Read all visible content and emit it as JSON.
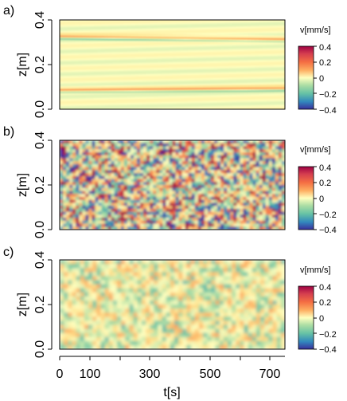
{
  "figure": {
    "x_ticks": [
      "0",
      "100",
      "300",
      "500",
      "700"
    ],
    "x_label": "t[s]"
  },
  "chart_data": [
    {
      "type": "heatmap",
      "panel_label": "a)",
      "xlim": [
        0,
        750
      ],
      "ylim": [
        0,
        0.4
      ],
      "y_ticks": [
        "0.0",
        "0.2",
        "0.4"
      ],
      "ylabel": "z[m]",
      "colorbar": {
        "title": "v[mm/s]",
        "ticks": [
          "0.4",
          "0.2",
          "0",
          "−0.2",
          "−0.4"
        ],
        "range": [
          -0.4,
          0.4
        ]
      },
      "pattern": "two thin layered bands near z≈0.08 and z≈0.31, slowly shifting with t"
    },
    {
      "type": "heatmap",
      "panel_label": "b)",
      "xlim": [
        0,
        750
      ],
      "ylim": [
        0,
        0.4
      ],
      "y_ticks": [
        "0.0",
        "0.2",
        "0.4"
      ],
      "ylabel": "z[m]",
      "colorbar": {
        "title": "v[mm/s]",
        "ticks": [
          "0.4",
          "0.2",
          "0",
          "−0.2",
          "−0.4"
        ],
        "range": [
          -0.4,
          0.4
        ]
      },
      "pattern": "strong random patches filling whole depth"
    },
    {
      "type": "heatmap",
      "panel_label": "c)",
      "xlim": [
        0,
        750
      ],
      "ylim": [
        0,
        0.4
      ],
      "y_ticks": [
        "0.0",
        "0.2",
        "0.4"
      ],
      "ylabel": "z[m]",
      "colorbar": {
        "title": "v[mm/s]",
        "ticks": [
          "0.4",
          "0.2",
          "0",
          "−0.2",
          "−0.4"
        ],
        "range": [
          -0.4,
          0.4
        ]
      },
      "pattern": "weak random patches filling whole depth"
    }
  ]
}
